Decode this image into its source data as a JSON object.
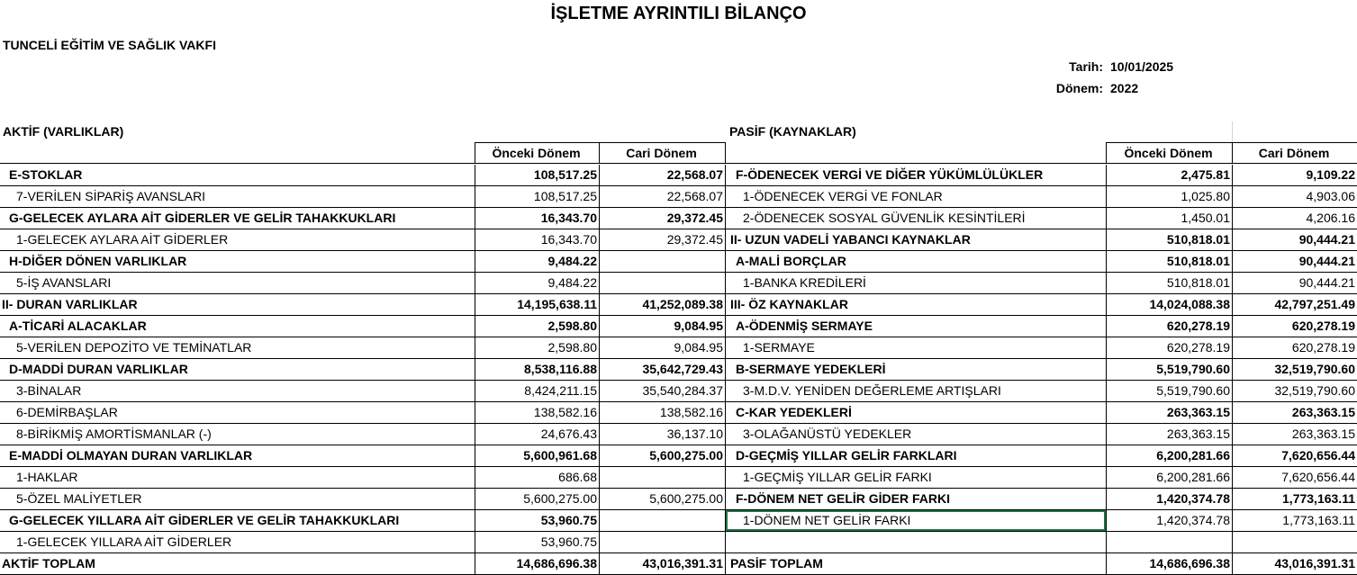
{
  "title": "İŞLETME AYRINTILI BİLANÇO",
  "organization": "TUNCELİ EĞİTİM VE SAĞLIK VAKFI",
  "meta": {
    "date_label": "Tarih:",
    "date": "10/01/2025",
    "period_label": "Dönem:",
    "period": "2022"
  },
  "selection_color": "#217346",
  "aktif": {
    "heading": "AKTİF (VARLIKLAR)",
    "columns": [
      "Önceki Dönem",
      "Cari Dönem"
    ],
    "rows": [
      {
        "label": "E-STOKLAR",
        "prev": "108,517.25",
        "cur": "22,568.07",
        "level": 1
      },
      {
        "label": "7-VERİLEN SİPARİŞ AVANSLARI",
        "prev": "108,517.25",
        "cur": "22,568.07",
        "level": 2
      },
      {
        "label": "G-GELECEK AYLARA AİT GİDERLER VE GELİR TAHAKKUKLARI",
        "prev": "16,343.70",
        "cur": "29,372.45",
        "level": 1
      },
      {
        "label": "1-GELECEK AYLARA AİT GİDERLER",
        "prev": "16,343.70",
        "cur": "29,372.45",
        "level": 2
      },
      {
        "label": "H-DİĞER DÖNEN VARLIKLAR",
        "prev": "9,484.22",
        "cur": "",
        "level": 1
      },
      {
        "label": "5-İŞ AVANSLARI",
        "prev": "9,484.22",
        "cur": "",
        "level": 2
      },
      {
        "label": "II- DURAN VARLIKLAR",
        "prev": "14,195,638.11",
        "cur": "41,252,089.38",
        "level": 0
      },
      {
        "label": "A-TİCARİ ALACAKLAR",
        "prev": "2,598.80",
        "cur": "9,084.95",
        "level": 1
      },
      {
        "label": "5-VERİLEN DEPOZİTO VE TEMİNATLAR",
        "prev": "2,598.80",
        "cur": "9,084.95",
        "level": 2
      },
      {
        "label": "D-MADDİ DURAN VARLIKLAR",
        "prev": "8,538,116.88",
        "cur": "35,642,729.43",
        "level": 1
      },
      {
        "label": "3-BİNALAR",
        "prev": "8,424,211.15",
        "cur": "35,540,284.37",
        "level": 2
      },
      {
        "label": "6-DEMİRBAŞLAR",
        "prev": "138,582.16",
        "cur": "138,582.16",
        "level": 2
      },
      {
        "label": "8-BİRİKMİŞ AMORTİSMANLAR (-)",
        "prev": "24,676.43",
        "cur": "36,137.10",
        "level": 2
      },
      {
        "label": "E-MADDİ OLMAYAN DURAN VARLIKLAR",
        "prev": "5,600,961.68",
        "cur": "5,600,275.00",
        "level": 1
      },
      {
        "label": "1-HAKLAR",
        "prev": "686.68",
        "cur": "",
        "level": 2
      },
      {
        "label": "5-ÖZEL MALİYETLER",
        "prev": "5,600,275.00",
        "cur": "5,600,275.00",
        "level": 2
      },
      {
        "label": "G-GELECEK YILLARA AİT GİDERLER VE GELİR TAHAKKUKLARI",
        "prev": "53,960.75",
        "cur": "",
        "level": 1
      },
      {
        "label": "1-GELECEK YILLARA AİT GİDERLER",
        "prev": "53,960.75",
        "cur": "",
        "level": 2
      },
      {
        "label": "AKTİF TOPLAM",
        "prev": "14,686,696.38",
        "cur": "43,016,391.31",
        "level": 0
      }
    ]
  },
  "pasif": {
    "heading": "PASİF (KAYNAKLAR)",
    "columns": [
      "Önceki Dönem",
      "Cari Dönem"
    ],
    "rows": [
      {
        "label": "F-ÖDENECEK VERGİ VE DİĞER YÜKÜMLÜLÜKLER",
        "prev": "2,475.81",
        "cur": "9,109.22",
        "level": 1
      },
      {
        "label": "1-ÖDENECEK VERGİ VE FONLAR",
        "prev": "1,025.80",
        "cur": "4,903.06",
        "level": 2
      },
      {
        "label": "2-ÖDENECEK SOSYAL GÜVENLİK KESİNTİLERİ",
        "prev": "1,450.01",
        "cur": "4,206.16",
        "level": 2
      },
      {
        "label": "II- UZUN VADELİ YABANCI KAYNAKLAR",
        "prev": "510,818.01",
        "cur": "90,444.21",
        "level": 0
      },
      {
        "label": "A-MALİ BORÇLAR",
        "prev": "510,818.01",
        "cur": "90,444.21",
        "level": 1
      },
      {
        "label": "1-BANKA KREDİLERİ",
        "prev": "510,818.01",
        "cur": "90,444.21",
        "level": 2
      },
      {
        "label": "III- ÖZ KAYNAKLAR",
        "prev": "14,024,088.38",
        "cur": "42,797,251.49",
        "level": 0
      },
      {
        "label": "A-ÖDENMİŞ SERMAYE",
        "prev": "620,278.19",
        "cur": "620,278.19",
        "level": 1
      },
      {
        "label": "1-SERMAYE",
        "prev": "620,278.19",
        "cur": "620,278.19",
        "level": 2
      },
      {
        "label": "B-SERMAYE YEDEKLERİ",
        "prev": "5,519,790.60",
        "cur": "32,519,790.60",
        "level": 1
      },
      {
        "label": "3-M.D.V. YENİDEN DEĞERLEME ARTIŞLARI",
        "prev": "5,519,790.60",
        "cur": "32,519,790.60",
        "level": 2
      },
      {
        "label": "C-KAR YEDEKLERİ",
        "prev": "263,363.15",
        "cur": "263,363.15",
        "level": 1
      },
      {
        "label": "3-OLAĞANÜSTÜ YEDEKLER",
        "prev": "263,363.15",
        "cur": "263,363.15",
        "level": 2
      },
      {
        "label": "D-GEÇMİŞ YILLAR GELİR FARKLARI",
        "prev": "6,200,281.66",
        "cur": "7,620,656.44",
        "level": 1
      },
      {
        "label": "1-GEÇMİŞ YILLAR GELİR FARKI",
        "prev": "6,200,281.66",
        "cur": "7,620,656.44",
        "level": 2
      },
      {
        "label": "F-DÖNEM NET GELİR GİDER FARKI",
        "prev": "1,420,374.78",
        "cur": "1,773,163.11",
        "level": 1
      },
      {
        "label": "1-DÖNEM NET GELİR FARKI",
        "prev": "1,420,374.78",
        "cur": "1,773,163.11",
        "level": 2,
        "selected": true
      },
      {
        "label": "",
        "prev": "",
        "cur": "",
        "level": 2
      },
      {
        "label": "PASİF TOPLAM",
        "prev": "14,686,696.38",
        "cur": "43,016,391.31",
        "level": 0
      }
    ]
  }
}
